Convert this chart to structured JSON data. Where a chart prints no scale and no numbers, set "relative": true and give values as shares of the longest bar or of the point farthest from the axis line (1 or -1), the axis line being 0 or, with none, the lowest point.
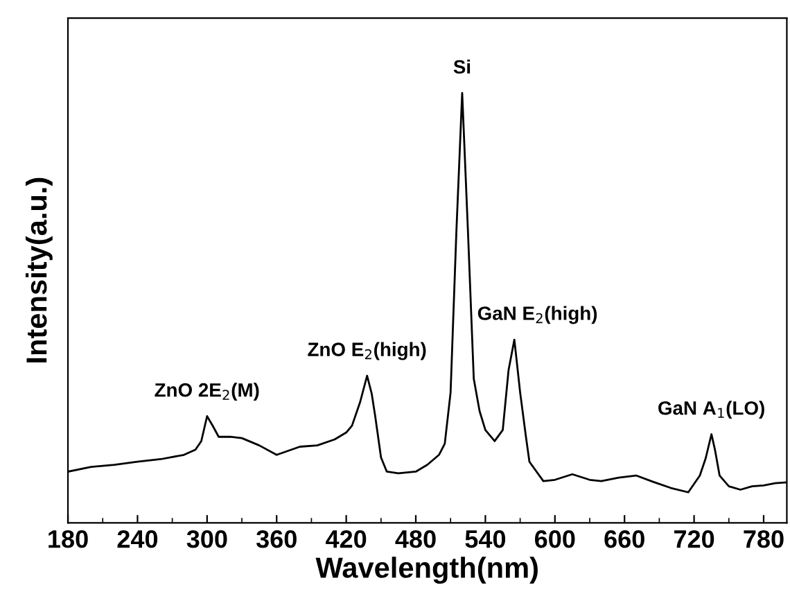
{
  "chart_data": {
    "type": "line",
    "xlabel": "Wavelength(nm)",
    "ylabel": "Intensity(a.u.)",
    "relative": true,
    "xlim": [
      180,
      800
    ],
    "xticks": [
      180,
      240,
      300,
      360,
      420,
      480,
      540,
      600,
      660,
      720,
      780
    ],
    "grid": false,
    "marker": "none",
    "line_style": "solid",
    "x": [
      180,
      200,
      220,
      240,
      260,
      280,
      290,
      295,
      300,
      305,
      310,
      320,
      330,
      345,
      360,
      380,
      395,
      410,
      420,
      425,
      432,
      438,
      442,
      445,
      450,
      455,
      465,
      480,
      490,
      500,
      505,
      510,
      515,
      520,
      525,
      530,
      535,
      540,
      548,
      555,
      560,
      565,
      570,
      575,
      578,
      590,
      600,
      615,
      630,
      640,
      655,
      670,
      685,
      700,
      715,
      725,
      730,
      735,
      738,
      742,
      750,
      760,
      770,
      780,
      790,
      800
    ],
    "series": [
      {
        "color": "#000000",
        "values": [
          0.119,
          0.13,
          0.135,
          0.142,
          0.148,
          0.158,
          0.17,
          0.19,
          0.248,
          0.225,
          0.2,
          0.2,
          0.197,
          0.18,
          0.158,
          0.177,
          0.18,
          0.194,
          0.21,
          0.226,
          0.281,
          0.342,
          0.3,
          0.248,
          0.152,
          0.119,
          0.115,
          0.119,
          0.135,
          0.158,
          0.184,
          0.303,
          0.677,
          1,
          0.677,
          0.335,
          0.26,
          0.216,
          0.19,
          0.216,
          0.355,
          0.426,
          0.303,
          0.2,
          0.142,
          0.097,
          0.1,
          0.113,
          0.1,
          0.097,
          0.105,
          0.11,
          0.095,
          0.081,
          0.071,
          0.11,
          0.15,
          0.206,
          0.17,
          0.11,
          0.085,
          0.077,
          0.085,
          0.087,
          0.092,
          0.094
        ]
      }
    ],
    "annotations": [
      {
        "text": "ZnO 2E$_{2}$(M)",
        "x": 300,
        "y": 0.248
      },
      {
        "text": "ZnO E$_{2}$(high)",
        "x": 438,
        "y": 0.342
      },
      {
        "text": "Si",
        "x": 520,
        "y": 1
      },
      {
        "text": "GaN E$_{2}$(high)",
        "x": 565,
        "y": 0.426
      },
      {
        "text": "GaN A$_{1}$(LO)",
        "x": 735,
        "y": 0.206
      }
    ]
  }
}
